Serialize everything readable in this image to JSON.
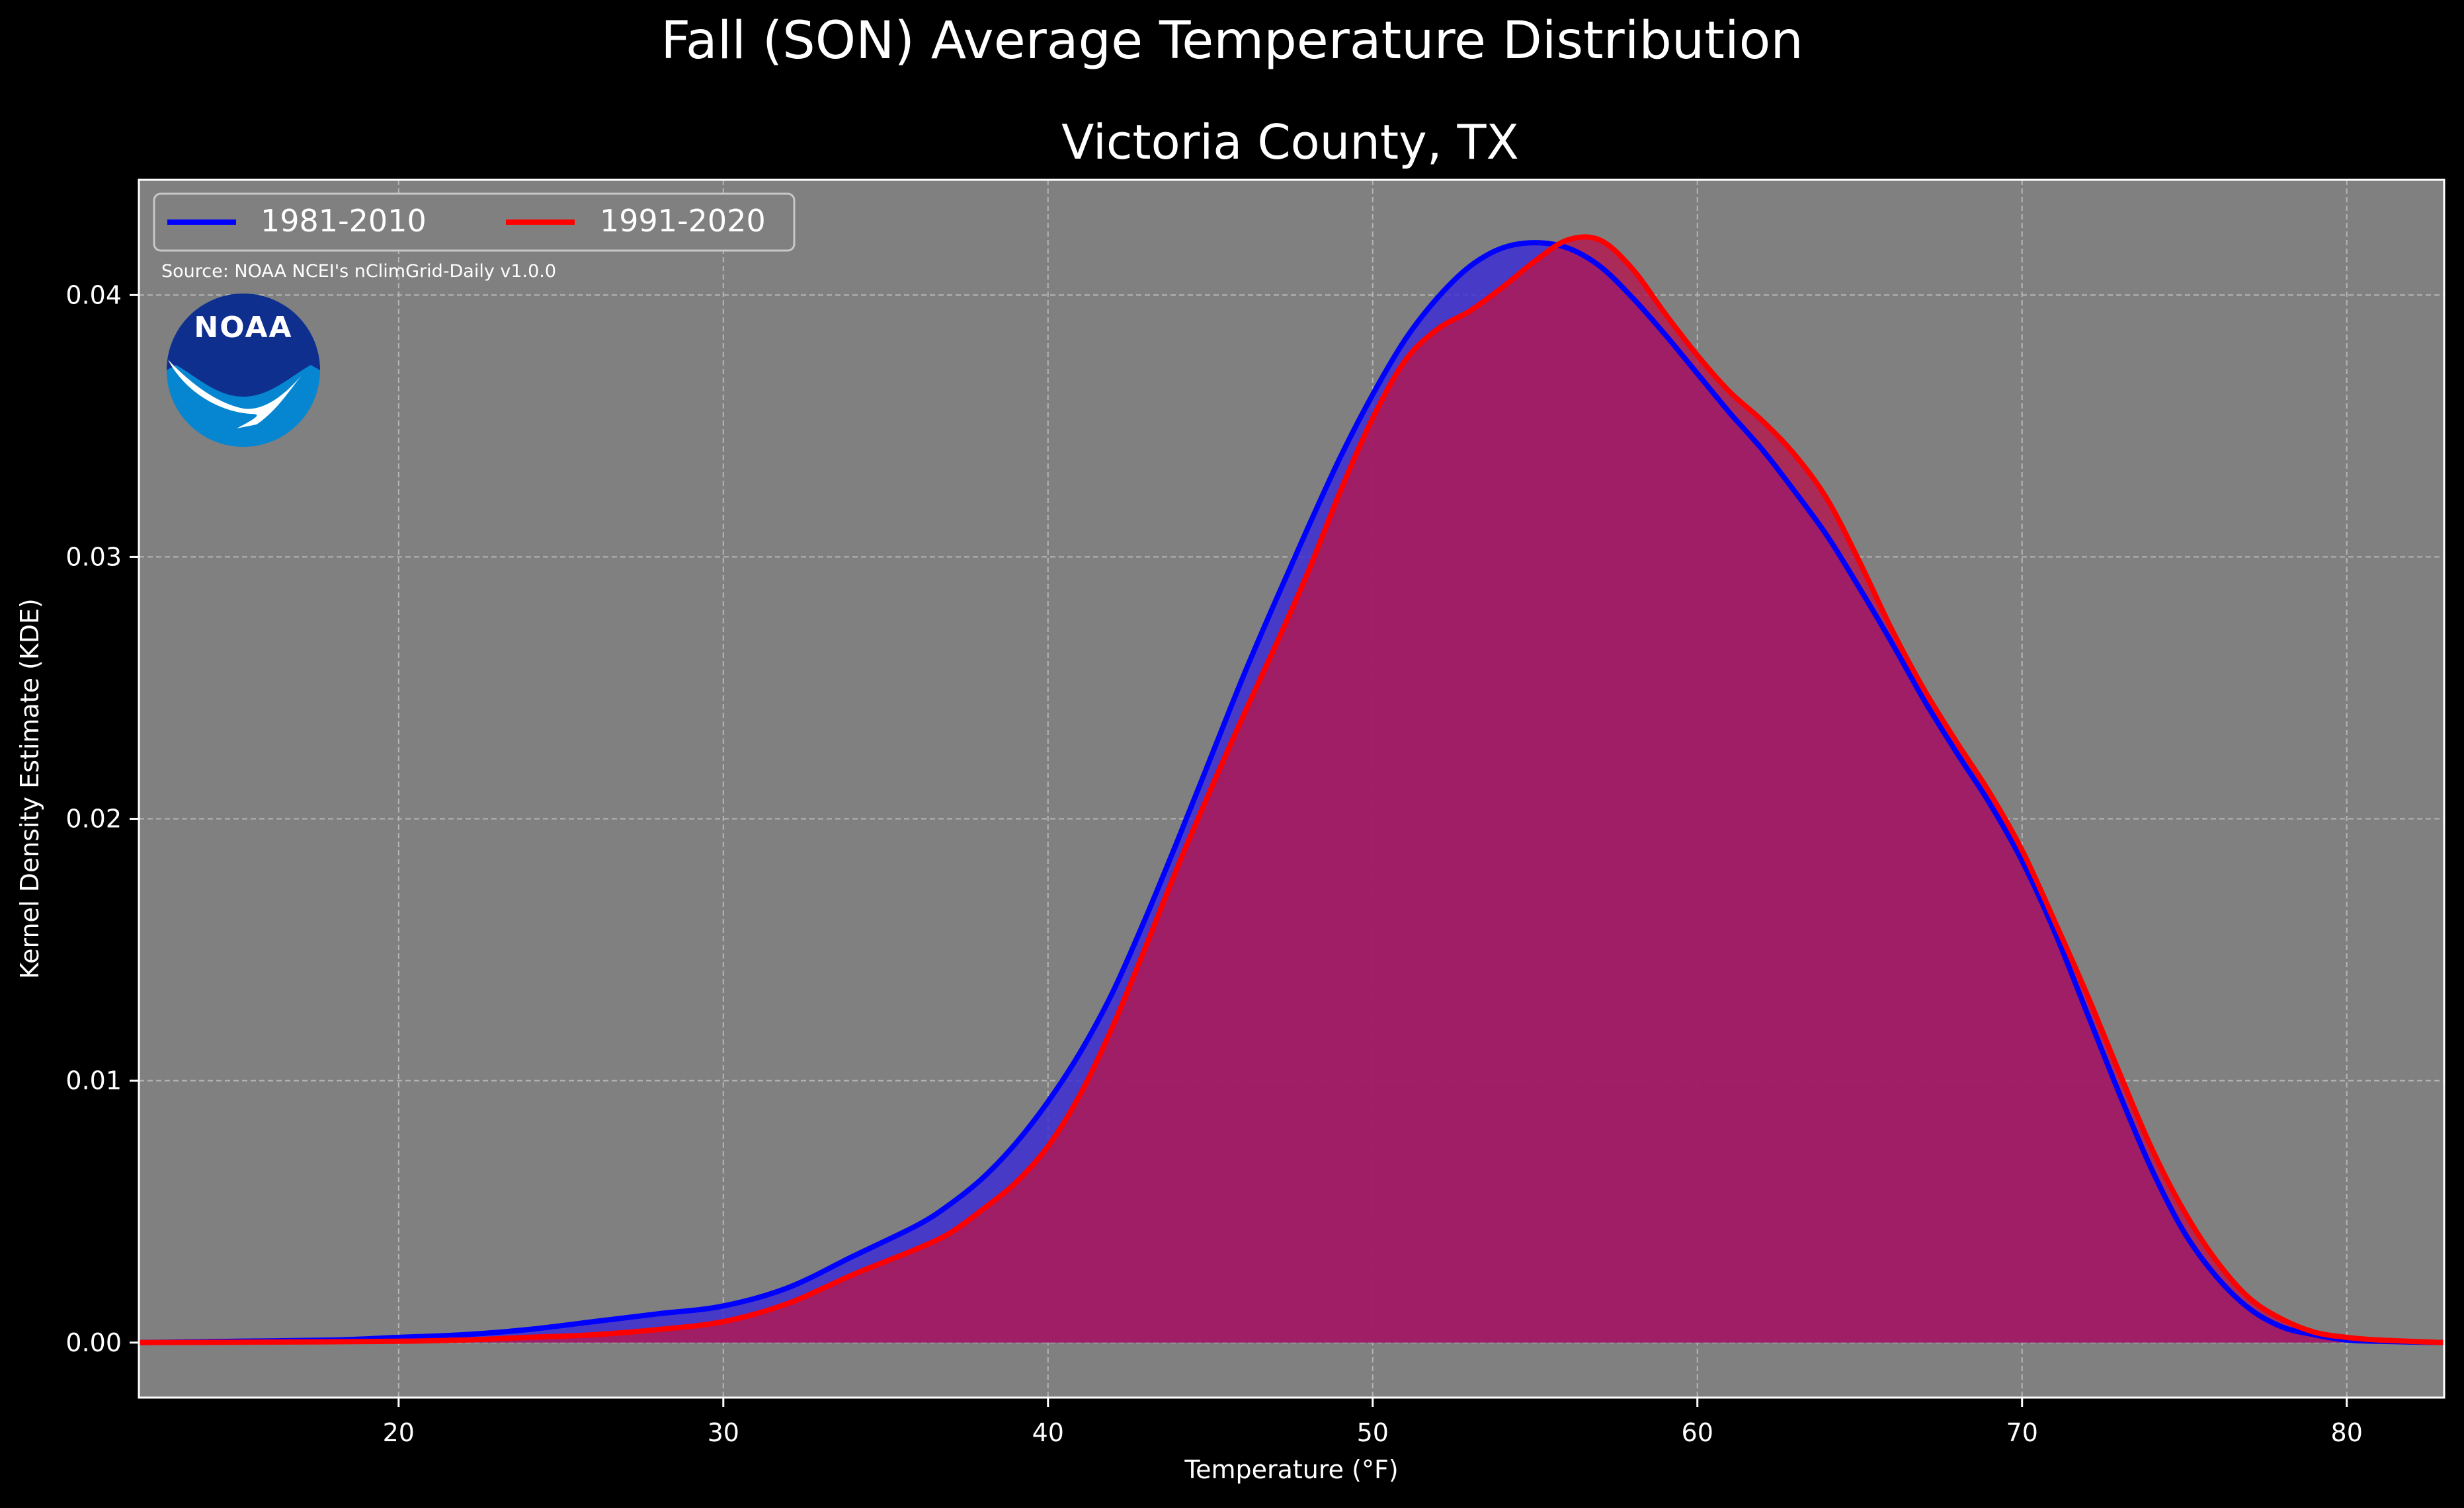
{
  "chart_data": {
    "type": "area",
    "title": "Fall (SON) Average Temperature Distribution",
    "subtitle": "Victoria County, TX",
    "xlabel": "Temperature ($^\\circ$F)",
    "xlabel_display": "Temperature (°F)",
    "ylabel": "Kernel Density Estimate (KDE)",
    "xlim": [
      12,
      83
    ],
    "ylim": [
      -0.0021,
      0.0444
    ],
    "xticks": [
      20,
      30,
      40,
      50,
      60,
      70,
      80
    ],
    "yticks": [
      0.0,
      0.01,
      0.02,
      0.03,
      0.04
    ],
    "ytick_labels": [
      "0.00",
      "0.01",
      "0.02",
      "0.03",
      "0.04"
    ],
    "grid": true,
    "legend_position": "top-left",
    "source_note": "Source: NOAA NCEI's nClimGrid-Daily v1.0.0",
    "logo_text": "NOAA",
    "series": [
      {
        "name": "1981-2010",
        "color": "#0000ff",
        "fill": "#3a2bd6",
        "points": [
          [
            12,
            0.0
          ],
          [
            15,
            5e-05
          ],
          [
            18,
            0.0001
          ],
          [
            20,
            0.0002
          ],
          [
            22,
            0.0003
          ],
          [
            24,
            0.0005
          ],
          [
            26,
            0.0008
          ],
          [
            28,
            0.0011
          ],
          [
            30,
            0.0014
          ],
          [
            32,
            0.0021
          ],
          [
            34,
            0.0033
          ],
          [
            36,
            0.0045
          ],
          [
            37,
            0.0053
          ],
          [
            38,
            0.0063
          ],
          [
            39,
            0.0076
          ],
          [
            40,
            0.0092
          ],
          [
            41,
            0.0111
          ],
          [
            42,
            0.0134
          ],
          [
            43,
            0.0162
          ],
          [
            44,
            0.0192
          ],
          [
            45,
            0.0223
          ],
          [
            46,
            0.0254
          ],
          [
            47,
            0.0283
          ],
          [
            48,
            0.0311
          ],
          [
            49,
            0.0338
          ],
          [
            50,
            0.0362
          ],
          [
            51,
            0.0383
          ],
          [
            52,
            0.0399
          ],
          [
            53,
            0.0411
          ],
          [
            54,
            0.0418
          ],
          [
            55,
            0.042
          ],
          [
            56,
            0.0418
          ],
          [
            57,
            0.0411
          ],
          [
            58,
            0.0399
          ],
          [
            59,
            0.0385
          ],
          [
            60,
            0.037
          ],
          [
            61,
            0.0355
          ],
          [
            62,
            0.0341
          ],
          [
            63,
            0.0325
          ],
          [
            64,
            0.0308
          ],
          [
            65,
            0.0288
          ],
          [
            66,
            0.0267
          ],
          [
            67,
            0.0245
          ],
          [
            68,
            0.0225
          ],
          [
            69,
            0.0206
          ],
          [
            70,
            0.0184
          ],
          [
            71,
            0.0157
          ],
          [
            72,
            0.0126
          ],
          [
            73,
            0.0095
          ],
          [
            74,
            0.0066
          ],
          [
            75,
            0.0042
          ],
          [
            76,
            0.0025
          ],
          [
            77,
            0.0013
          ],
          [
            78,
            0.0006
          ],
          [
            79,
            0.0003
          ],
          [
            80,
            0.0001
          ],
          [
            81,
            5e-05
          ],
          [
            83,
            0.0
          ]
        ]
      },
      {
        "name": "1991-2020",
        "color": "#ff0000",
        "fill": "#b3184f",
        "points": [
          [
            12,
            0.0
          ],
          [
            16,
            2e-05
          ],
          [
            20,
            5e-05
          ],
          [
            22,
            0.0001
          ],
          [
            24,
            0.0002
          ],
          [
            26,
            0.0003
          ],
          [
            28,
            0.0005
          ],
          [
            30,
            0.0008
          ],
          [
            32,
            0.0015
          ],
          [
            34,
            0.0026
          ],
          [
            36,
            0.0036
          ],
          [
            37,
            0.0042
          ],
          [
            38,
            0.0051
          ],
          [
            39,
            0.0061
          ],
          [
            40,
            0.0075
          ],
          [
            41,
            0.0095
          ],
          [
            42,
            0.0121
          ],
          [
            43,
            0.0151
          ],
          [
            44,
            0.0182
          ],
          [
            45,
            0.0211
          ],
          [
            46,
            0.0239
          ],
          [
            47,
            0.0266
          ],
          [
            48,
            0.0294
          ],
          [
            49,
            0.0325
          ],
          [
            50,
            0.0353
          ],
          [
            51,
            0.0375
          ],
          [
            52,
            0.0387
          ],
          [
            53,
            0.0394
          ],
          [
            54,
            0.0403
          ],
          [
            55,
            0.0413
          ],
          [
            56,
            0.0421
          ],
          [
            57,
            0.0421
          ],
          [
            58,
            0.041
          ],
          [
            59,
            0.0393
          ],
          [
            60,
            0.0377
          ],
          [
            61,
            0.0363
          ],
          [
            62,
            0.0352
          ],
          [
            63,
            0.0339
          ],
          [
            64,
            0.0322
          ],
          [
            65,
            0.0298
          ],
          [
            66,
            0.0272
          ],
          [
            67,
            0.0249
          ],
          [
            68,
            0.0229
          ],
          [
            69,
            0.021
          ],
          [
            70,
            0.0188
          ],
          [
            71,
            0.0161
          ],
          [
            72,
            0.0133
          ],
          [
            73,
            0.0103
          ],
          [
            74,
            0.0074
          ],
          [
            75,
            0.005
          ],
          [
            76,
            0.0031
          ],
          [
            77,
            0.0017
          ],
          [
            78,
            0.0009
          ],
          [
            79,
            0.0004
          ],
          [
            80,
            0.0002
          ],
          [
            81,
            0.0001
          ],
          [
            83,
            0.0
          ]
        ]
      }
    ]
  },
  "colors": {
    "background": "#000000",
    "plot_background": "#808080",
    "grid": "#b5b5b5",
    "logo_blue_dark": "#0f2f8f",
    "logo_blue_light": "#0686d1"
  }
}
